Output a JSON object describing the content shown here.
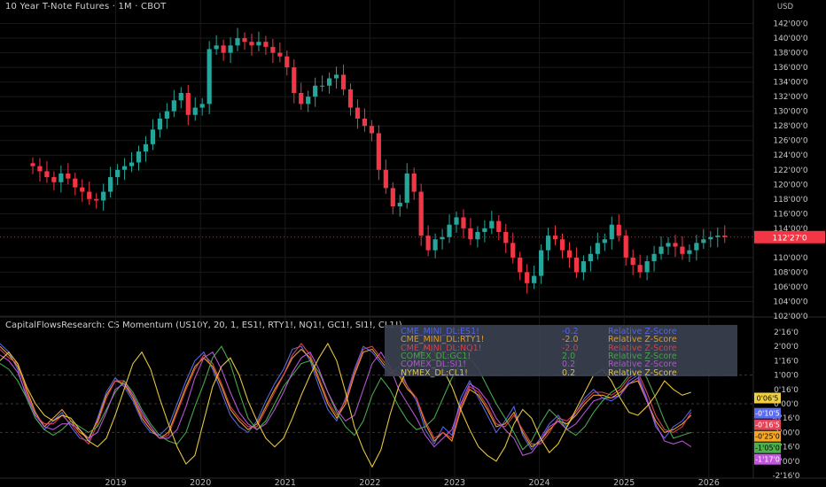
{
  "main_chart": {
    "title": "10 Year T-Note Futures · 1M · CBOT",
    "currency": "USD",
    "price_ticks": [
      "142'00'0",
      "140'00'0",
      "138'00'0",
      "136'00'0",
      "134'00'0",
      "132'00'0",
      "130'00'0",
      "128'00'0",
      "126'00'0",
      "124'00'0",
      "122'00'0",
      "120'00'0",
      "118'00'0",
      "116'00'0",
      "114'00'0",
      "110'00'0",
      "108'00'0",
      "106'00'0",
      "104'00'0",
      "102'00'0"
    ],
    "last_price": "112'27'0",
    "last_price_color": "#f23645"
  },
  "indicator": {
    "title": "CapitalFlowsResearch: CS Momentum (US10Y, 20, 1, ES1!, RTY1!, NQ1!, GC1!, SI1!, CL1!)",
    "y_ticks": [
      "2'16'0",
      "2'00'0",
      "1'16'0",
      "1'00'0",
      "0'16'0",
      "0'00'0",
      "-0'16'0",
      "-1'00'0",
      "-1'16'0",
      "-2'00'0",
      "-2'16'0"
    ],
    "legend": [
      {
        "name": "CME_MINI_DL:ES1!",
        "value": "-0.2",
        "label": "Relative Z-Score",
        "color": "#5b6cf0"
      },
      {
        "name": "CME_MINI_DL:RTY1!",
        "value": "-2.0",
        "label": "Relative Z-Score",
        "color": "#f5a623"
      },
      {
        "name": "CME_MINI_DL:NQ1!",
        "value": "-2.0",
        "label": "Relative Z-Score",
        "color": "#e2455a"
      },
      {
        "name": "COMEX_DL:GC1!",
        "value": "2.0",
        "label": "Relative Z-Score",
        "color": "#4caf50"
      },
      {
        "name": "COMEX_DL:SI1!",
        "value": "0.2",
        "label": "Relative Z-Score",
        "color": "#c158dc"
      },
      {
        "name": "NYMEX_DL:CL1!",
        "value": "0.2",
        "label": "Relative Z-Score",
        "color": "#f0d040"
      }
    ],
    "badges": [
      {
        "text": "0'06'5",
        "color": "#f0d040",
        "fg": "#000"
      },
      {
        "text": "-0'10'5",
        "color": "#5b6cf0",
        "fg": "#fff"
      },
      {
        "text": "-0'16'5",
        "color": "#e2455a",
        "fg": "#fff"
      },
      {
        "text": "-0'25'0",
        "color": "#f5a623",
        "fg": "#000"
      },
      {
        "text": "-1'05'0",
        "color": "#4caf50",
        "fg": "#000"
      },
      {
        "text": "-1'17'0",
        "color": "#c158dc",
        "fg": "#fff"
      }
    ]
  },
  "x_axis": [
    "2019",
    "2020",
    "2021",
    "2022",
    "2023",
    "2024",
    "2025",
    "2026"
  ],
  "colors": {
    "up": "#26a69a",
    "down": "#f23645",
    "background": "#000000",
    "grid": "#1a1a1a"
  },
  "chart_data": [
    {
      "type": "candlestick",
      "title": "10 Year T-Note Futures · 1M · CBOT",
      "x_range": [
        "2018-01",
        "2026-01"
      ],
      "ylim": [
        102,
        144
      ],
      "series": [
        {
          "values": [
            122.5,
            121.8,
            121.0,
            120.3,
            121.5,
            120.8,
            119.6,
            119.0,
            118.0,
            117.8,
            119.0,
            121.0,
            122.0,
            122.5,
            123.0,
            124.5,
            125.5,
            127.5,
            129.0,
            130.0,
            131.5,
            132.5,
            129.5,
            130.5,
            131.0,
            138.5,
            139.0,
            138.0,
            139.0,
            140.0,
            139.5,
            139.0,
            139.5,
            138.8,
            138.0,
            137.5,
            136.0,
            132.5,
            131.0,
            132.0,
            133.5,
            133.5,
            134.5,
            135.0,
            133.0,
            130.5,
            129.0,
            128.0,
            127.0,
            122.0,
            119.5,
            117.0,
            117.5,
            121.5,
            119.0,
            113.0,
            111.0,
            112.5,
            112.8,
            114.5,
            115.5,
            114.0,
            112.5,
            113.5,
            114.0,
            115.0,
            113.5,
            112.0,
            110.0,
            108.0,
            106.5,
            107.5,
            111.0,
            113.0,
            112.5,
            111.0,
            110.0,
            108.0,
            109.5,
            110.5,
            112.0,
            112.5,
            114.5,
            113.0,
            110.0,
            109.0,
            108.0,
            109.5,
            110.5,
            111.5,
            112.0,
            111.5,
            110.5,
            111.0,
            112.0,
            112.5,
            112.8,
            113.0,
            112.8
          ]
        }
      ]
    },
    {
      "type": "line",
      "title": "CapitalFlowsResearch: CS Momentum (US10Y, 20, 1, ES1!, RTY1!, NQ1!, GC1!, SI1!, CL1!)",
      "x_range": [
        "2018-01",
        "2026-01"
      ],
      "ylim": [
        -2.5,
        2.5
      ],
      "series": [
        {
          "name": "CME_MINI_DL:ES1!",
          "values": [
            2.1,
            1.8,
            1.2,
            0.2,
            -0.5,
            -0.9,
            -0.6,
            -0.3,
            -0.8,
            -1.2,
            -1.3,
            -0.5,
            0.4,
            0.9,
            0.6,
            0.1,
            -0.6,
            -1.0,
            -1.1,
            -0.8,
            0.0,
            0.8,
            1.5,
            1.8,
            1.2,
            0.4,
            -0.4,
            -0.8,
            -1.0,
            -0.6,
            0.1,
            0.7,
            1.2,
            1.9,
            2.0,
            1.5,
            0.6,
            -0.2,
            -0.6,
            0.2,
            1.2,
            2.0,
            1.8,
            1.4,
            1.0,
            1.3,
            0.6,
            0.1,
            -0.9,
            -1.4,
            -0.8,
            -1.1,
            0.2,
            0.8,
            0.2,
            -0.4,
            -1.0,
            -0.6,
            -0.1,
            -1.1,
            -1.6,
            -1.2,
            -0.7,
            -0.4,
            -0.8,
            -0.3,
            0.2,
            0.5,
            0.2,
            0.1,
            0.3,
            0.8,
            1.0,
            0.2,
            -0.8,
            -1.2,
            -0.8,
            -0.6,
            -0.2
          ]
        },
        {
          "name": "CME_MINI_DL:RTY1!",
          "values": [
            2.0,
            1.7,
            1.3,
            0.5,
            -0.3,
            -0.8,
            -0.5,
            -0.2,
            -0.6,
            -1.0,
            -1.2,
            -0.6,
            0.3,
            0.8,
            0.7,
            0.2,
            -0.5,
            -0.9,
            -1.2,
            -1.0,
            -0.2,
            0.6,
            1.3,
            1.6,
            1.3,
            0.6,
            -0.2,
            -0.6,
            -0.9,
            -0.7,
            -0.1,
            0.5,
            1.0,
            1.6,
            1.9,
            1.6,
            0.8,
            0.0,
            -0.5,
            0.0,
            1.0,
            1.8,
            1.9,
            1.5,
            1.1,
            1.0,
            0.5,
            0.2,
            -0.7,
            -1.3,
            -1.0,
            -1.3,
            -0.2,
            0.5,
            0.3,
            -0.2,
            -0.8,
            -0.7,
            -0.3,
            -1.0,
            -1.5,
            -1.3,
            -0.9,
            -0.6,
            -0.7,
            -0.4,
            0.0,
            0.3,
            0.3,
            0.2,
            0.4,
            0.7,
            0.8,
            0.1,
            -0.6,
            -1.0,
            -0.9,
            -0.7,
            -0.4
          ]
        },
        {
          "name": "CME_MINI_DL:NQ1!",
          "values": [
            1.9,
            1.6,
            1.4,
            0.4,
            -0.4,
            -0.7,
            -0.7,
            -0.4,
            -0.7,
            -1.1,
            -1.4,
            -0.7,
            0.2,
            0.8,
            0.8,
            0.3,
            -0.4,
            -0.8,
            -1.2,
            -1.1,
            -0.3,
            0.5,
            1.2,
            1.7,
            1.4,
            0.7,
            -0.1,
            -0.5,
            -0.8,
            -0.8,
            -0.2,
            0.4,
            1.0,
            1.7,
            2.1,
            1.7,
            0.9,
            0.1,
            -0.4,
            0.1,
            1.1,
            1.9,
            2.0,
            1.6,
            1.2,
            1.1,
            0.6,
            0.2,
            -0.6,
            -1.2,
            -1.0,
            -1.2,
            -0.1,
            0.6,
            0.4,
            -0.1,
            -0.7,
            -0.8,
            -0.4,
            -0.9,
            -1.4,
            -1.4,
            -1.0,
            -0.5,
            -0.6,
            -0.3,
            0.1,
            0.4,
            0.4,
            0.3,
            0.5,
            0.9,
            1.1,
            0.4,
            -0.4,
            -0.9,
            -1.0,
            -0.8,
            -0.3
          ]
        },
        {
          "name": "COMEX_DL:GC1!",
          "values": [
            1.4,
            1.2,
            0.8,
            0.2,
            -0.5,
            -0.9,
            -1.1,
            -0.9,
            -0.6,
            -0.8,
            -1.0,
            -0.8,
            -0.2,
            0.4,
            0.8,
            0.4,
            -0.2,
            -0.7,
            -1.1,
            -1.3,
            -1.4,
            -1.0,
            -0.1,
            0.7,
            1.6,
            2.0,
            1.4,
            0.4,
            -0.5,
            -0.9,
            -0.6,
            0.0,
            0.6,
            1.0,
            1.4,
            1.5,
            1.1,
            0.4,
            -0.3,
            -0.8,
            -1.1,
            -0.6,
            0.3,
            0.9,
            0.5,
            -0.1,
            -0.6,
            -0.9,
            -0.8,
            -0.5,
            0.2,
            0.9,
            1.4,
            1.6,
            1.2,
            0.6,
            0.0,
            -0.5,
            -1.0,
            -1.6,
            -1.3,
            -0.7,
            -0.2,
            -0.5,
            -0.9,
            -1.1,
            -0.8,
            -0.3,
            0.1,
            0.4,
            0.6,
            1.0,
            1.4,
            0.9,
            0.2,
            -0.6,
            -1.2,
            -1.1,
            -1.0
          ]
        },
        {
          "name": "COMEX_DL:SI1!",
          "values": [
            1.7,
            1.5,
            1.1,
            0.3,
            -0.4,
            -0.8,
            -0.9,
            -0.7,
            -0.7,
            -0.9,
            -1.2,
            -1.0,
            -0.3,
            0.5,
            0.7,
            0.3,
            -0.3,
            -0.8,
            -1.2,
            -1.2,
            -0.9,
            -0.1,
            0.9,
            1.6,
            1.8,
            1.2,
            0.4,
            -0.3,
            -0.7,
            -0.9,
            -0.7,
            -0.2,
            0.4,
            1.1,
            1.6,
            1.8,
            1.2,
            0.4,
            -0.2,
            -0.6,
            -0.4,
            0.5,
            1.4,
            1.8,
            1.3,
            0.5,
            0.0,
            -0.5,
            -1.1,
            -1.5,
            -1.2,
            -0.9,
            0.0,
            0.7,
            0.5,
            0.1,
            -0.5,
            -0.9,
            -1.2,
            -1.8,
            -1.7,
            -1.3,
            -0.8,
            -0.6,
            -0.9,
            -0.7,
            -0.3,
            0.1,
            0.2,
            0.2,
            0.3,
            0.7,
            0.9,
            0.1,
            -0.7,
            -1.3,
            -1.4,
            -1.3,
            -1.5
          ]
        },
        {
          "name": "NYMEX_DL:CL1!",
          "values": [
            1.5,
            1.8,
            1.4,
            0.6,
            0.0,
            -0.4,
            -0.6,
            -0.4,
            -0.5,
            -0.9,
            -1.3,
            -1.5,
            -1.2,
            -0.4,
            0.5,
            1.4,
            1.8,
            1.2,
            0.2,
            -0.7,
            -1.5,
            -2.1,
            -1.8,
            -0.6,
            0.6,
            1.3,
            1.6,
            1.0,
            0.1,
            -0.6,
            -1.2,
            -1.5,
            -1.2,
            -0.5,
            0.3,
            1.0,
            1.6,
            2.1,
            1.5,
            0.4,
            -0.8,
            -1.6,
            -2.2,
            -1.6,
            -0.4,
            0.6,
            1.2,
            1.6,
            2.0,
            1.8,
            1.2,
            0.6,
            -0.2,
            -0.9,
            -1.5,
            -1.8,
            -2.0,
            -1.5,
            -0.7,
            -0.2,
            -0.5,
            -1.2,
            -1.7,
            -1.4,
            -0.8,
            -0.2,
            0.4,
            1.0,
            1.2,
            0.8,
            0.2,
            -0.3,
            -0.4,
            -0.1,
            0.3,
            0.8,
            0.5,
            0.3,
            0.4
          ]
        }
      ]
    }
  ]
}
